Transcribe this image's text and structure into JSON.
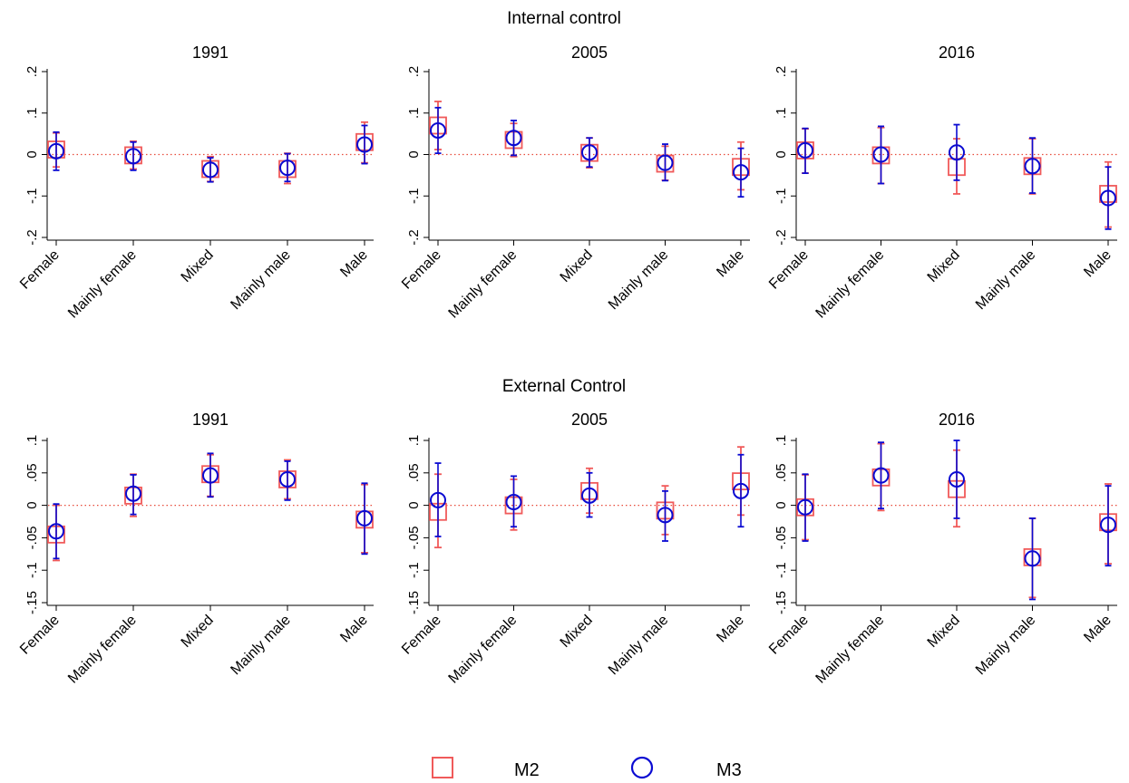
{
  "groups": [
    {
      "title": "Internal control"
    },
    {
      "title": "External Control"
    }
  ],
  "legend": [
    {
      "label": "M2",
      "color": "#f05a5a",
      "marker": "square"
    },
    {
      "label": "M3",
      "color": "#0a0ad2",
      "marker": "circle"
    }
  ],
  "colors": {
    "m2": "#f05a5a",
    "m3": "#0a0ad2",
    "zero_line": "#e74c3c"
  },
  "chart_data": [
    {
      "type": "scatter",
      "group": "Internal control",
      "title": "1991",
      "categories": [
        "Female",
        "Mainly female",
        "Mixed",
        "Mainly male",
        "Male"
      ],
      "ylim": [
        -0.2,
        0.2
      ],
      "yticks": [
        {
          "v": -0.2,
          "label": "-.2"
        },
        {
          "v": -0.1,
          "label": "-.1"
        },
        {
          "v": 0,
          "label": "0"
        },
        {
          "v": 0.1,
          "label": ".1"
        },
        {
          "v": 0.2,
          "label": ".2"
        }
      ],
      "series": [
        {
          "name": "M2",
          "values": [
            0.012,
            -0.002,
            -0.035,
            -0.035,
            0.03
          ],
          "ci_low": [
            -0.03,
            -0.035,
            -0.065,
            -0.07,
            -0.02
          ],
          "ci_high": [
            0.052,
            0.032,
            -0.005,
            0.003,
            0.078
          ]
        },
        {
          "name": "M3",
          "values": [
            0.008,
            -0.004,
            -0.037,
            -0.032,
            0.024
          ],
          "ci_low": [
            -0.038,
            -0.038,
            -0.066,
            -0.065,
            -0.022
          ],
          "ci_high": [
            0.054,
            0.03,
            -0.008,
            0.002,
            0.07
          ]
        }
      ]
    },
    {
      "type": "scatter",
      "group": "Internal control",
      "title": "2005",
      "categories": [
        "Female",
        "Mainly female",
        "Mixed",
        "Mainly male",
        "Male"
      ],
      "ylim": [
        -0.2,
        0.2
      ],
      "yticks": [
        {
          "v": -0.2,
          "label": "-.2"
        },
        {
          "v": -0.1,
          "label": "-.1"
        },
        {
          "v": 0,
          "label": "0"
        },
        {
          "v": 0.1,
          "label": ".1"
        },
        {
          "v": 0.2,
          "label": ".2"
        }
      ],
      "series": [
        {
          "name": "M2",
          "values": [
            0.07,
            0.035,
            0.004,
            -0.022,
            -0.03
          ],
          "ci_low": [
            0.012,
            -0.005,
            -0.032,
            -0.062,
            -0.085
          ],
          "ci_high": [
            0.128,
            0.075,
            0.04,
            0.02,
            0.03
          ]
        },
        {
          "name": "M3",
          "values": [
            0.058,
            0.04,
            0.005,
            -0.02,
            -0.043
          ],
          "ci_low": [
            0.003,
            -0.002,
            -0.03,
            -0.063,
            -0.102
          ],
          "ci_high": [
            0.113,
            0.082,
            0.04,
            0.025,
            0.015
          ]
        }
      ]
    },
    {
      "type": "scatter",
      "group": "Internal control",
      "title": "2016",
      "categories": [
        "Female",
        "Mainly female",
        "Mixed",
        "Mainly male",
        "Male"
      ],
      "ylim": [
        -0.2,
        0.2
      ],
      "yticks": [
        {
          "v": -0.2,
          "label": "-.2"
        },
        {
          "v": -0.1,
          "label": "-.1"
        },
        {
          "v": 0,
          "label": "0"
        },
        {
          "v": 0.1,
          "label": ".1"
        },
        {
          "v": 0.2,
          "label": ".2"
        }
      ],
      "series": [
        {
          "name": "M2",
          "values": [
            0.01,
            -0.002,
            -0.03,
            -0.028,
            -0.095
          ],
          "ci_low": [
            -0.045,
            -0.07,
            -0.095,
            -0.095,
            -0.175
          ],
          "ci_high": [
            0.062,
            0.065,
            0.038,
            0.038,
            -0.018
          ]
        },
        {
          "name": "M3",
          "values": [
            0.01,
            0.0,
            0.005,
            -0.028,
            -0.105
          ],
          "ci_low": [
            -0.045,
            -0.07,
            -0.062,
            -0.093,
            -0.18
          ],
          "ci_high": [
            0.063,
            0.068,
            0.072,
            0.04,
            -0.03
          ]
        }
      ]
    },
    {
      "type": "scatter",
      "group": "External Control",
      "title": "1991",
      "categories": [
        "Female",
        "Mainly female",
        "Mixed",
        "Mainly male",
        "Male"
      ],
      "ylim": [
        -0.15,
        0.1
      ],
      "yticks": [
        {
          "v": -0.15,
          "label": "-.15"
        },
        {
          "v": -0.1,
          "label": "-.1"
        },
        {
          "v": -0.05,
          "label": "-.05"
        },
        {
          "v": 0,
          "label": "0"
        },
        {
          "v": 0.05,
          "label": ".05"
        },
        {
          "v": 0.1,
          "label": ".1"
        }
      ],
      "series": [
        {
          "name": "M2",
          "values": [
            -0.045,
            0.015,
            0.048,
            0.04,
            -0.022
          ],
          "ci_low": [
            -0.085,
            -0.017,
            0.014,
            0.01,
            -0.073
          ],
          "ci_high": [
            0.0,
            0.048,
            0.078,
            0.07,
            0.032
          ]
        },
        {
          "name": "M3",
          "values": [
            -0.04,
            0.018,
            0.046,
            0.04,
            -0.02
          ],
          "ci_low": [
            -0.082,
            -0.014,
            0.013,
            0.008,
            -0.075
          ],
          "ci_high": [
            0.002,
            0.047,
            0.08,
            0.068,
            0.034
          ]
        }
      ]
    },
    {
      "type": "scatter",
      "group": "External Control",
      "title": "2005",
      "categories": [
        "Female",
        "Mainly female",
        "Mixed",
        "Mainly male",
        "Male"
      ],
      "ylim": [
        -0.15,
        0.1
      ],
      "yticks": [
        {
          "v": -0.15,
          "label": "-.15"
        },
        {
          "v": -0.1,
          "label": "-.1"
        },
        {
          "v": -0.05,
          "label": "-.05"
        },
        {
          "v": 0,
          "label": "0"
        },
        {
          "v": 0.05,
          "label": ".05"
        },
        {
          "v": 0.1,
          "label": ".1"
        }
      ],
      "series": [
        {
          "name": "M2",
          "values": [
            -0.01,
            0.0,
            0.022,
            -0.008,
            0.037
          ],
          "ci_low": [
            -0.065,
            -0.038,
            -0.012,
            -0.045,
            -0.015
          ],
          "ci_high": [
            0.048,
            0.04,
            0.057,
            0.03,
            0.09
          ]
        },
        {
          "name": "M3",
          "values": [
            0.008,
            0.005,
            0.015,
            -0.015,
            0.022
          ],
          "ci_low": [
            -0.048,
            -0.033,
            -0.018,
            -0.055,
            -0.033
          ],
          "ci_high": [
            0.065,
            0.045,
            0.05,
            0.022,
            0.078
          ]
        }
      ]
    },
    {
      "type": "scatter",
      "group": "External Control",
      "title": "2016",
      "categories": [
        "Female",
        "Mainly female",
        "Mixed",
        "Mainly male",
        "Male"
      ],
      "ylim": [
        -0.15,
        0.1
      ],
      "yticks": [
        {
          "v": -0.15,
          "label": "-.15"
        },
        {
          "v": -0.1,
          "label": "-.1"
        },
        {
          "v": -0.05,
          "label": "-.05"
        },
        {
          "v": 0,
          "label": "0"
        },
        {
          "v": 0.05,
          "label": ".05"
        },
        {
          "v": 0.1,
          "label": ".1"
        }
      ],
      "series": [
        {
          "name": "M2",
          "values": [
            -0.003,
            0.043,
            0.025,
            -0.08,
            -0.026
          ],
          "ci_low": [
            -0.053,
            -0.008,
            -0.033,
            -0.142,
            -0.09
          ],
          "ci_high": [
            0.047,
            0.095,
            0.085,
            -0.02,
            0.033
          ]
        },
        {
          "name": "M3",
          "values": [
            -0.003,
            0.046,
            0.04,
            -0.082,
            -0.03
          ],
          "ci_low": [
            -0.055,
            -0.005,
            -0.02,
            -0.145,
            -0.093
          ],
          "ci_high": [
            0.048,
            0.097,
            0.1,
            -0.02,
            0.03
          ]
        }
      ]
    }
  ]
}
